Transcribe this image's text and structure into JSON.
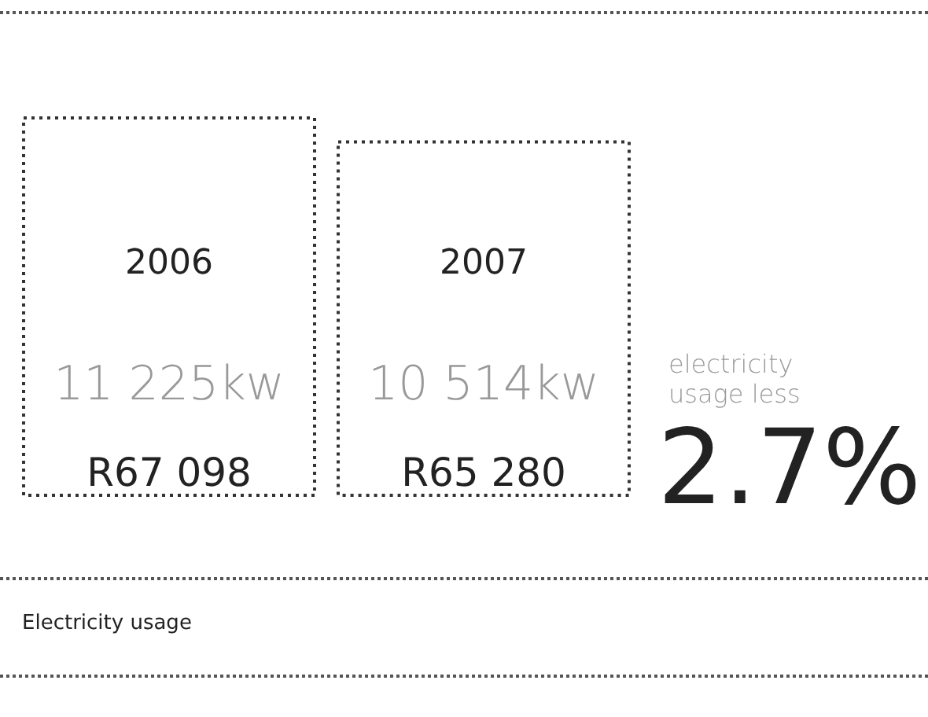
{
  "chart_data": {
    "type": "bar",
    "title": "Electricity usage",
    "categories": [
      "2006",
      "2007"
    ],
    "values": [
      11225,
      10514
    ],
    "value_labels": [
      "11 225kw",
      "10 514kw"
    ],
    "color": "#333333",
    "annotations": [
      "R67 098",
      "R65 280",
      "electricity usage less",
      "2.7%"
    ]
  }
}
